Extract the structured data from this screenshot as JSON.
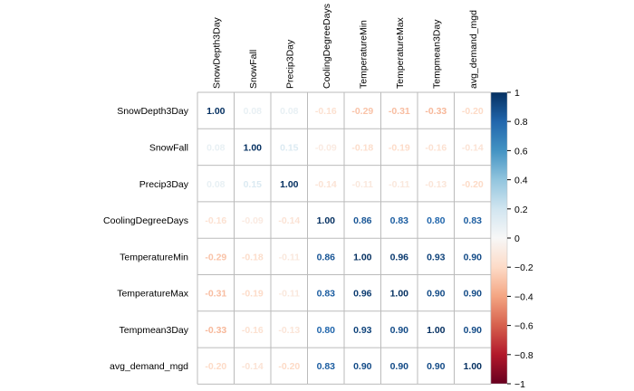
{
  "chart_data": {
    "type": "heatmap",
    "title": "",
    "variables": [
      "SnowDepth3Day",
      "SnowFall",
      "Precip3Day",
      "CoolingDegreeDays",
      "TemperatureMin",
      "TemperatureMax",
      "Tempmean3Day",
      "avg_demand_mgd"
    ],
    "values": [
      [
        1.0,
        0.08,
        0.08,
        -0.16,
        -0.29,
        -0.31,
        -0.33,
        -0.2
      ],
      [
        0.08,
        1.0,
        0.15,
        -0.09,
        -0.18,
        -0.19,
        -0.16,
        -0.14
      ],
      [
        0.08,
        0.15,
        1.0,
        -0.14,
        -0.11,
        -0.11,
        -0.13,
        -0.2
      ],
      [
        -0.16,
        -0.09,
        -0.14,
        1.0,
        0.86,
        0.83,
        0.8,
        0.83
      ],
      [
        -0.29,
        -0.18,
        -0.11,
        0.86,
        1.0,
        0.96,
        0.93,
        0.9
      ],
      [
        -0.31,
        -0.19,
        -0.11,
        0.83,
        0.96,
        1.0,
        0.9,
        0.9
      ],
      [
        -0.33,
        -0.16,
        -0.13,
        0.8,
        0.93,
        0.9,
        1.0,
        0.9
      ],
      [
        -0.2,
        -0.14,
        -0.2,
        0.83,
        0.9,
        0.9,
        0.9,
        1.0
      ]
    ],
    "colorbar": {
      "range": [
        -1,
        1
      ],
      "ticks": [
        1,
        0.8,
        0.6,
        0.4,
        0.2,
        0,
        -0.2,
        -0.4,
        -0.6,
        -0.8,
        -1
      ],
      "tick_labels": [
        "1",
        "0.8",
        "0.6",
        "0.4",
        "0.2",
        "0",
        "−0.2",
        "−0.4",
        "−0.6",
        "−0.8",
        "−1"
      ]
    },
    "colors": {
      "negative_end": "#67001f",
      "mid_negative": "#d6604d",
      "light_negative": "#fddbc7",
      "neutral": "#f7f7f7",
      "light_positive": "#d1e5f0",
      "mid_positive": "#4393c3",
      "positive_end": "#053061",
      "grid": "#bbbbbb"
    },
    "legend": "right",
    "grid": true
  }
}
